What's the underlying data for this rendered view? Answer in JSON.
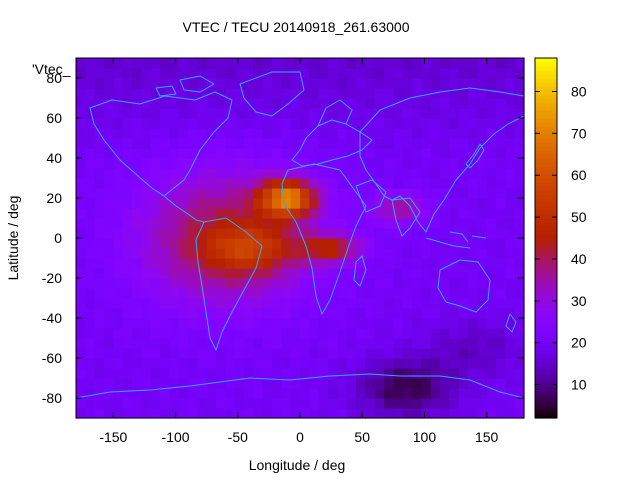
{
  "chart_data": {
    "type": "heatmap",
    "title": "VTEC / TECU 20140918_261.63000",
    "xlabel": "Longitude / deg",
    "ylabel": "Latitude / deg",
    "xlim": [
      -180,
      180
    ],
    "ylim": [
      -90,
      90
    ],
    "x_ticks": [
      -150,
      -100,
      -50,
      0,
      50,
      100,
      150
    ],
    "y_ticks": [
      -80,
      -60,
      -40,
      -20,
      0,
      20,
      40,
      60,
      80
    ],
    "colorbar": {
      "range": [
        2,
        88
      ],
      "ticks": [
        10,
        20,
        30,
        40,
        50,
        60,
        70,
        80
      ]
    },
    "legend_key": "'Vtec_",
    "overlay": "continent outlines",
    "features": [
      {
        "name": "main-peak",
        "lon": -10,
        "lat": 20,
        "value": 85
      },
      {
        "name": "equatorial-band",
        "lon": -40,
        "lat": -5,
        "value": 65
      },
      {
        "name": "south-atlantic-lobe",
        "lon": 25,
        "lat": -5,
        "value": 60
      },
      {
        "name": "indian-ocean-lobe",
        "lon": 80,
        "lat": 15,
        "value": 45
      },
      {
        "name": "southern-minimum",
        "lon": 85,
        "lat": -75,
        "value": 3
      }
    ]
  }
}
